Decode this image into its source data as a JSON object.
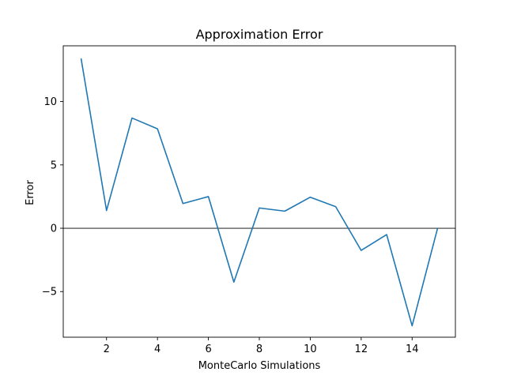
{
  "chart_data": {
    "type": "line",
    "title": "Approximation Error",
    "xlabel": "MonteCarlo Simulations",
    "ylabel": "Error",
    "xlim": [
      0.3,
      15.7
    ],
    "ylim": [
      -8.6,
      14.4
    ],
    "xticks": [
      2,
      4,
      6,
      8,
      10,
      12,
      14
    ],
    "yticks": [
      -5,
      0,
      5,
      10
    ],
    "ytick_labels": [
      "−5",
      "0",
      "5",
      "10"
    ],
    "grid": false,
    "reference_line": {
      "y": 0,
      "color": "#000000"
    },
    "series": [
      {
        "color": "#1f77b4",
        "x": [
          1,
          2,
          3,
          4,
          5,
          6,
          7,
          8,
          9,
          10,
          11,
          12,
          13,
          14,
          15
        ],
        "y": [
          13.4,
          1.4,
          8.7,
          7.85,
          1.95,
          2.5,
          -4.25,
          1.6,
          1.35,
          2.45,
          1.7,
          -1.75,
          -0.5,
          -7.7,
          0.0
        ]
      }
    ]
  }
}
